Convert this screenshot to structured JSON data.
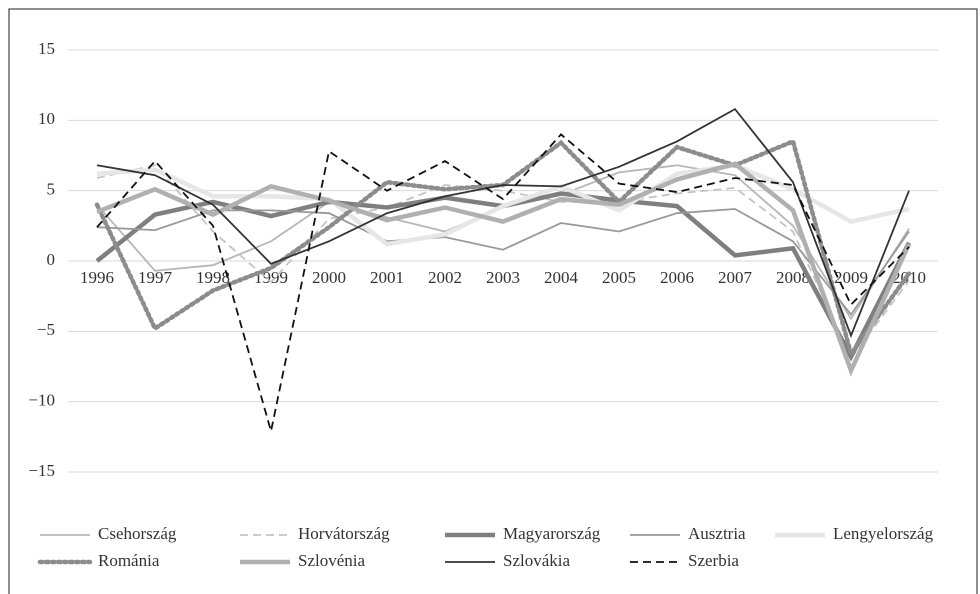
{
  "chart_data": {
    "type": "line",
    "categories": [
      "1996",
      "1997",
      "1998",
      "1999",
      "2000",
      "2001",
      "2002",
      "2003",
      "2004",
      "2005",
      "2006",
      "2007",
      "2008",
      "2009",
      "2010"
    ],
    "ylim": [
      -15,
      15
    ],
    "yticks": [
      {
        "value": -15,
        "label": "−15"
      },
      {
        "value": -10,
        "label": "−10"
      },
      {
        "value": -5,
        "label": "−5"
      },
      0,
      5,
      10,
      15
    ],
    "grid": true,
    "legend": "bottom",
    "series": [
      {
        "name": "Csehország",
        "color": "#b8b8b8",
        "line_style": "solid",
        "weight": "thin",
        "values": [
          4.0,
          -0.7,
          -0.3,
          1.4,
          4.2,
          3.1,
          2.1,
          3.8,
          4.7,
          6.3,
          6.8,
          6.1,
          2.5,
          -4.1,
          2.3
        ]
      },
      {
        "name": "Horvátország",
        "color": "#c4c4c4",
        "line_style": "dashed",
        "weight": "thin",
        "values": [
          5.9,
          6.8,
          2.1,
          -1.5,
          3.0,
          3.8,
          5.4,
          5.0,
          4.2,
          4.2,
          4.8,
          5.2,
          2.1,
          -6.9,
          -1.4
        ]
      },
      {
        "name": "Magyarország",
        "color": "#7f7f7f",
        "line_style": "solid",
        "weight": "thick",
        "values": [
          0.0,
          3.3,
          4.2,
          3.2,
          4.2,
          3.8,
          4.5,
          3.9,
          4.8,
          4.3,
          3.9,
          0.4,
          0.9,
          -6.8,
          1.3
        ]
      },
      {
        "name": "Ausztria",
        "color": "#999999",
        "line_style": "solid",
        "weight": "thin",
        "values": [
          2.4,
          2.2,
          3.6,
          3.6,
          3.4,
          1.4,
          1.7,
          0.8,
          2.7,
          2.1,
          3.4,
          3.7,
          1.4,
          -3.8,
          2.1
        ]
      },
      {
        "name": "Lengyelország",
        "color": "#e6e6e6",
        "line_style": "solid",
        "weight": "thick",
        "values": [
          6.2,
          6.5,
          4.6,
          4.6,
          4.4,
          1.2,
          1.9,
          3.9,
          5.3,
          3.6,
          6.2,
          6.8,
          5.1,
          2.8,
          3.7
        ]
      },
      {
        "name": "Románia",
        "color": "#8c8c8c",
        "line_style": "dotted",
        "weight": "thick",
        "values": [
          4.0,
          -4.8,
          -2.1,
          -0.5,
          2.4,
          5.6,
          5.1,
          5.4,
          8.4,
          4.2,
          8.1,
          6.8,
          8.5,
          -6.6,
          -0.9
        ]
      },
      {
        "name": "Szlovénia",
        "color": "#b0b0b0",
        "line_style": "solid",
        "weight": "thick",
        "values": [
          3.5,
          5.1,
          3.3,
          5.3,
          4.3,
          2.9,
          3.8,
          2.8,
          4.4,
          4.0,
          5.8,
          6.9,
          3.6,
          -7.8,
          1.2
        ]
      },
      {
        "name": "Szlovákia",
        "color": "#333333",
        "line_style": "solid",
        "weight": "thin",
        "values": [
          6.8,
          6.1,
          4.0,
          -0.2,
          1.4,
          3.4,
          4.6,
          5.4,
          5.3,
          6.7,
          8.5,
          10.8,
          5.6,
          -5.3,
          5.0
        ]
      },
      {
        "name": "Szerbia",
        "color": "#111111",
        "line_style": "dashed",
        "weight": "thin",
        "values": [
          2.4,
          7.1,
          2.5,
          -12.1,
          7.8,
          5.0,
          7.1,
          4.4,
          9.0,
          5.5,
          4.9,
          5.9,
          5.4,
          -3.1,
          1.0
        ]
      }
    ]
  }
}
